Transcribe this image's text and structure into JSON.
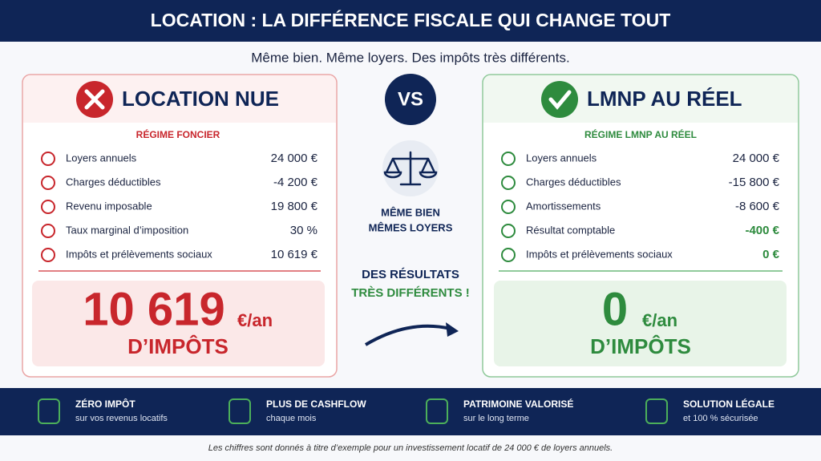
{
  "header": {
    "title": "LOCATION : LA DIFFÉRENCE FISCALE QUI CHANGE TOUT",
    "subtitle": "Même bien. Même loyers. Des impôts très différents."
  },
  "left": {
    "title": "LOCATION NUE",
    "regime": "RÉGIME FONCIER",
    "rows": [
      [
        "Loyers annuels",
        "24 000 €"
      ],
      [
        "Charges déductibles",
        "-4 200 €"
      ],
      [
        "Revenu imposable",
        "19 800 €"
      ],
      [
        "Taux marginal d’imposition",
        "30 %"
      ],
      [
        "Impôts et prélèvements sociaux",
        "10 619 €"
      ]
    ],
    "amount": "10 619",
    "unit": "€/an",
    "caption": "D’IMPÔTS"
  },
  "middle": {
    "vs": "VS",
    "line1": "MÊME BIEN",
    "line2": "MÊMES LOYERS",
    "line3": "DES RÉSULTATS",
    "line4": "TRÈS DIFFÉRENTS !"
  },
  "right": {
    "title": "LMNP AU RÉEL",
    "regime": "RÉGIME LMNP AU RÉEL",
    "rows": [
      [
        "Loyers annuels",
        "24 000 €"
      ],
      [
        "Charges déductibles",
        "-15 800 €"
      ],
      [
        "Amortissements",
        "-8 600 €"
      ],
      [
        "Résultat comptable",
        "-400 €"
      ],
      [
        "Impôts et prélèvements sociaux",
        "0 €"
      ]
    ],
    "amount": "0",
    "unit": "€/an",
    "caption": "D’IMPÔTS"
  },
  "features": [
    [
      "ZÉRO IMPÔT",
      "sur vos revenus locatifs"
    ],
    [
      "PLUS DE CASHFLOW",
      "chaque mois"
    ],
    [
      "PATRIMOINE VALORISÉ",
      "sur le long terme"
    ],
    [
      "SOLUTION LÉGALE",
      "et 100 % sécurisée"
    ]
  ],
  "footnote": "Les chiffres sont donnés à titre d’exemple pour un investissement locatif de 24 000 € de loyers annuels."
}
